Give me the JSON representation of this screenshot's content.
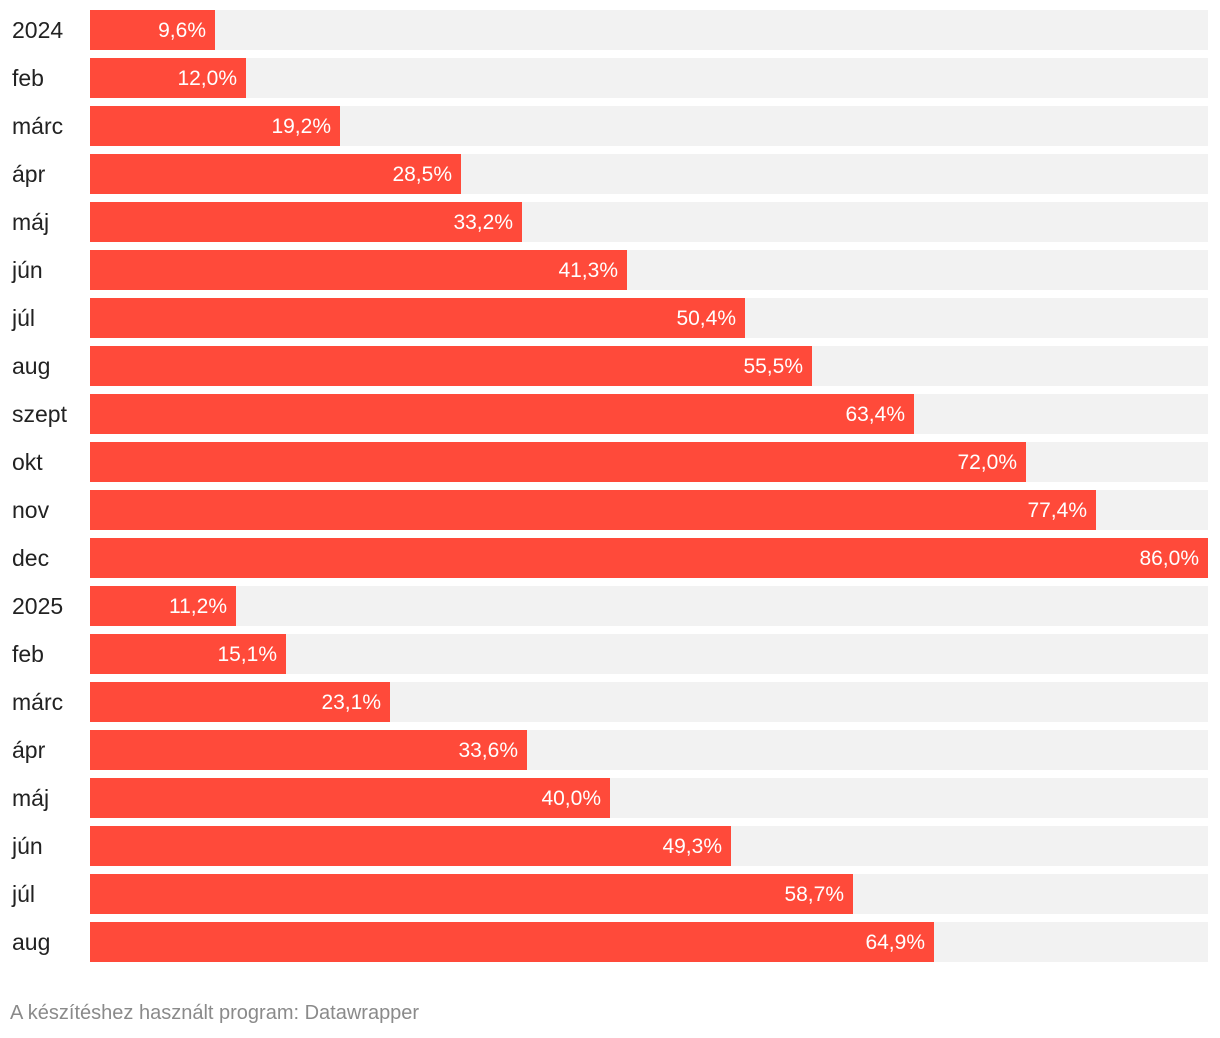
{
  "chart_data": {
    "type": "bar",
    "orientation": "horizontal",
    "title": "",
    "xlabel": "",
    "ylabel": "",
    "xlim": [
      0,
      86.0
    ],
    "grid": false,
    "legend": "none",
    "value_suffix": "%",
    "decimal_separator": ",",
    "categories": [
      "2024",
      "feb",
      "márc",
      "ápr",
      "máj",
      "jún",
      "júl",
      "aug",
      "szept",
      "okt",
      "nov",
      "dec",
      "2025",
      "feb",
      "márc",
      "ápr",
      "máj",
      "jún",
      "júl",
      "aug"
    ],
    "values": [
      9.6,
      12.0,
      19.2,
      28.5,
      33.2,
      41.3,
      50.4,
      55.5,
      63.4,
      72.0,
      77.4,
      86.0,
      11.2,
      15.1,
      23.1,
      33.6,
      40.0,
      49.3,
      58.7,
      64.9
    ],
    "value_labels": [
      "9,6%",
      "12,0%",
      "19,2%",
      "28,5%",
      "33,2%",
      "41,3%",
      "50,4%",
      "55,5%",
      "63,4%",
      "72,0%",
      "77,4%",
      "86,0%",
      "11,2%",
      "15,1%",
      "23,1%",
      "33,6%",
      "40,0%",
      "49,3%",
      "58,7%",
      "64,9%"
    ],
    "colors": {
      "bar": "#ff4a3a",
      "track": "#f2f2f2",
      "label": "#222222",
      "value_label": "#ffffff"
    }
  },
  "footer": {
    "credit": "A készítéshez használt program: Datawrapper"
  }
}
